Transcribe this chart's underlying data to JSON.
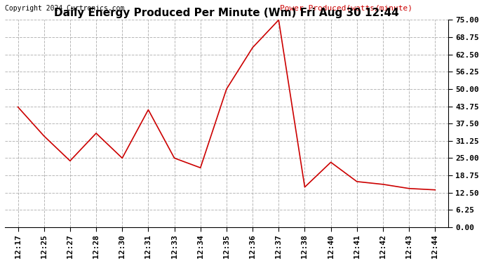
{
  "title": "Daily Energy Produced Per Minute (Wm) Fri Aug 30 12:44",
  "copyright": "Copyright 2024 Curtronics.com",
  "legend_label": "Power Produced(watts/minute)",
  "line_color": "#cc0000",
  "background_color": "#ffffff",
  "grid_color": "#999999",
  "ylim": [
    0.0,
    75.0
  ],
  "yticks": [
    0.0,
    6.25,
    12.5,
    18.75,
    25.0,
    31.25,
    37.5,
    43.75,
    50.0,
    56.25,
    62.5,
    68.75,
    75.0
  ],
  "x_labels": [
    "12:17",
    "12:25",
    "12:27",
    "12:28",
    "12:30",
    "12:31",
    "12:33",
    "12:34",
    "12:35",
    "12:36",
    "12:37",
    "12:38",
    "12:40",
    "12:41",
    "12:42",
    "12:43",
    "12:44"
  ],
  "y_values": [
    43.5,
    33.0,
    24.0,
    34.0,
    25.0,
    42.5,
    25.0,
    21.5,
    50.0,
    65.0,
    75.0,
    14.5,
    23.5,
    16.5,
    15.5,
    14.0,
    13.5
  ]
}
